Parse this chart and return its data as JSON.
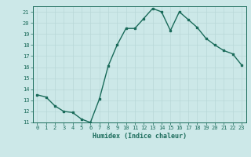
{
  "x": [
    0,
    1,
    2,
    3,
    4,
    5,
    6,
    7,
    8,
    9,
    10,
    11,
    12,
    13,
    14,
    15,
    16,
    17,
    18,
    19,
    20,
    21,
    22,
    23
  ],
  "y": [
    13.5,
    13.3,
    12.5,
    12.0,
    11.9,
    11.3,
    11.0,
    13.1,
    16.1,
    18.0,
    19.5,
    19.5,
    20.4,
    21.3,
    21.0,
    19.3,
    21.0,
    20.3,
    19.6,
    18.6,
    18.0,
    17.5,
    17.2,
    16.2
  ],
  "xlabel": "Humidex (Indice chaleur)",
  "ylim": [
    11,
    21.5
  ],
  "xlim": [
    -0.5,
    23.5
  ],
  "yticks": [
    11,
    12,
    13,
    14,
    15,
    16,
    17,
    18,
    19,
    20,
    21
  ],
  "xticks": [
    0,
    1,
    2,
    3,
    4,
    5,
    6,
    7,
    8,
    9,
    10,
    11,
    12,
    13,
    14,
    15,
    16,
    17,
    18,
    19,
    20,
    21,
    22,
    23
  ],
  "line_color": "#1a6b5a",
  "marker_color": "#1a6b5a",
  "bg_color": "#cce8e8",
  "grid_color": "#b8d8d8",
  "tick_color": "#1a6b5a",
  "label_color": "#1a6b5a",
  "font_family": "monospace"
}
